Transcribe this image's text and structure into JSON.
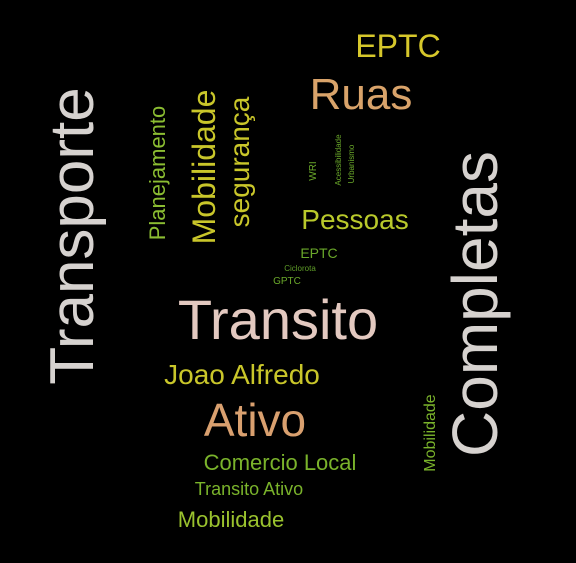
{
  "colors": {
    "background": "#000000",
    "light_gray": "#d6d2cf",
    "tan": "#d9a36a",
    "yellow": "#c9c62a",
    "green": "#7ab32b",
    "pink_beige": "#e6bcae"
  },
  "words": [
    {
      "text": "EPTC",
      "color": "#d6c72b"
    },
    {
      "text": "Ruas",
      "color": "#d9a36a"
    },
    {
      "text": "Transporte",
      "color": "#d6d2cf"
    },
    {
      "text": "Planejamento",
      "color": "#8bbd32"
    },
    {
      "text": "Mobilidade",
      "color": "#c9c62a"
    },
    {
      "text": "segurança",
      "color": "#c9c62a"
    },
    {
      "text": "WRI",
      "color": "#6aa82a"
    },
    {
      "text": "Acessibilidade",
      "color": "#6aa82a"
    },
    {
      "text": "Urbanismo",
      "color": "#6aa82a"
    },
    {
      "text": "Completas",
      "color": "#d6d2cf"
    },
    {
      "text": "Pessoas",
      "color": "#b9c92b"
    },
    {
      "text": "EPTC",
      "color": "#6aa82a"
    },
    {
      "text": "Ciclorota",
      "color": "#5f9e28"
    },
    {
      "text": "GPTC",
      "color": "#6aa82a"
    },
    {
      "text": "Transito",
      "color": "#e3c9c0"
    },
    {
      "text": "Joao Alfredo",
      "color": "#c9c62a"
    },
    {
      "text": "Ativo",
      "color": "#d9a06f"
    },
    {
      "text": "Mobilidade",
      "color": "#7ab32b"
    },
    {
      "text": "Comercio Local",
      "color": "#7ab32b"
    },
    {
      "text": "Transito Ativo",
      "color": "#7ab32b"
    },
    {
      "text": "Mobilidade",
      "color": "#9ac22e"
    }
  ]
}
